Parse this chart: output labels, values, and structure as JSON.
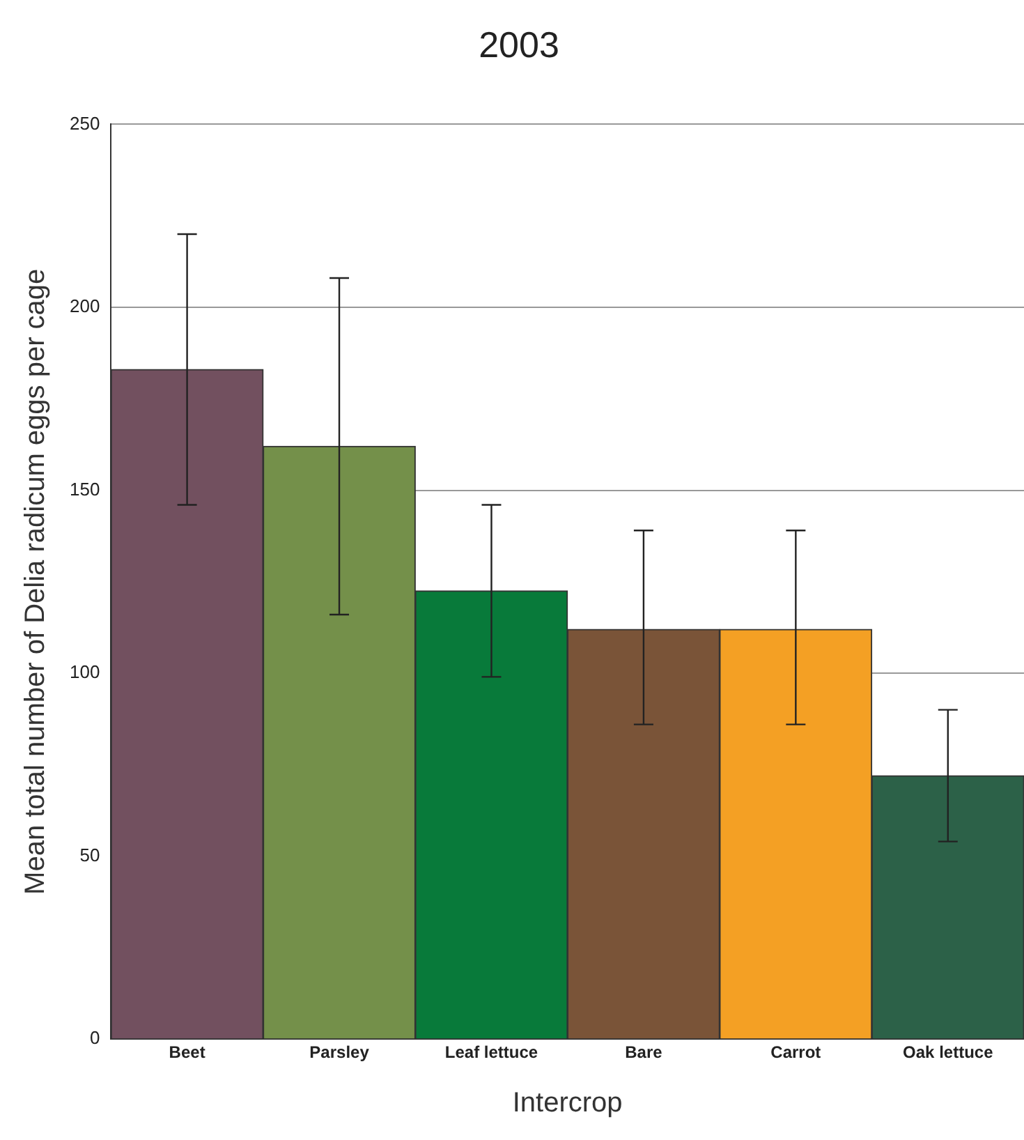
{
  "chart_data": {
    "type": "bar",
    "title": "2003",
    "xlabel": "Intercrop",
    "ylabel": "Mean total number of Delia radicum eggs per cage",
    "categories": [
      "Beet",
      "Parsley",
      "Leaf lettuce",
      "Bare",
      "Carrot",
      "Oak lettuce"
    ],
    "values": [
      183,
      162,
      122.5,
      112,
      112,
      72
    ],
    "colors": [
      "#72505f",
      "#74904a",
      "#087a3a",
      "#7a5438",
      "#f4a024",
      "#2c6148"
    ],
    "errors": [
      [
        146,
        220
      ],
      [
        116,
        208
      ],
      [
        99,
        146
      ],
      [
        86,
        139
      ],
      [
        86,
        139
      ],
      [
        54,
        90
      ]
    ],
    "ylim": [
      0,
      250
    ],
    "yticks": [
      0,
      50,
      100,
      150,
      200,
      250
    ],
    "grid": "y"
  }
}
